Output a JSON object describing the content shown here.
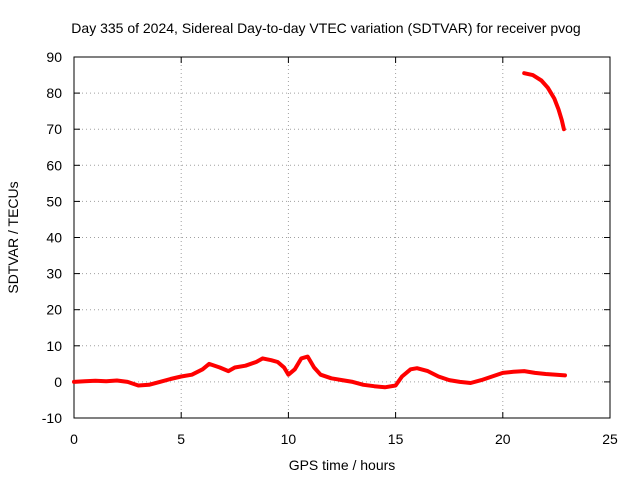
{
  "chart_data": {
    "type": "line",
    "title": "Day 335 of 2024, Sidereal Day-to-day VTEC variation (SDTVAR) for receiver pvog",
    "xlabel": "GPS time / hours",
    "ylabel": "SDTVAR / TECUs",
    "xlim": [
      0,
      25
    ],
    "ylim": [
      -10,
      90
    ],
    "xticks": [
      0,
      5,
      10,
      15,
      20,
      25
    ],
    "yticks": [
      -10,
      0,
      10,
      20,
      30,
      40,
      50,
      60,
      70,
      80,
      90
    ],
    "grid": true,
    "series": [
      {
        "name": "SDTVAR",
        "color": "#ff0000",
        "segments": [
          [
            [
              0.0,
              0.0
            ],
            [
              0.5,
              0.2
            ],
            [
              1.0,
              0.3
            ],
            [
              1.5,
              0.2
            ],
            [
              2.0,
              0.4
            ],
            [
              2.5,
              0.0
            ],
            [
              3.0,
              -1.0
            ],
            [
              3.5,
              -0.8
            ],
            [
              4.0,
              0.0
            ],
            [
              4.5,
              0.8
            ],
            [
              5.0,
              1.5
            ],
            [
              5.5,
              2.0
            ],
            [
              6.0,
              3.5
            ],
            [
              6.3,
              5.0
            ],
            [
              6.8,
              4.0
            ],
            [
              7.2,
              3.0
            ],
            [
              7.5,
              4.0
            ],
            [
              8.0,
              4.5
            ],
            [
              8.5,
              5.5
            ],
            [
              8.8,
              6.5
            ],
            [
              9.2,
              6.0
            ],
            [
              9.5,
              5.5
            ],
            [
              9.8,
              4.0
            ],
            [
              10.0,
              2.0
            ],
            [
              10.3,
              3.5
            ],
            [
              10.6,
              6.5
            ],
            [
              10.9,
              7.0
            ],
            [
              11.2,
              4.0
            ],
            [
              11.5,
              2.0
            ],
            [
              12.0,
              1.0
            ],
            [
              12.5,
              0.5
            ],
            [
              13.0,
              0.0
            ],
            [
              13.5,
              -0.8
            ],
            [
              14.0,
              -1.2
            ],
            [
              14.5,
              -1.5
            ],
            [
              15.0,
              -1.0
            ],
            [
              15.3,
              1.5
            ],
            [
              15.7,
              3.5
            ],
            [
              16.0,
              3.8
            ],
            [
              16.5,
              3.0
            ],
            [
              17.0,
              1.5
            ],
            [
              17.5,
              0.5
            ],
            [
              18.0,
              0.0
            ],
            [
              18.5,
              -0.3
            ],
            [
              19.0,
              0.5
            ],
            [
              19.5,
              1.5
            ],
            [
              20.0,
              2.5
            ],
            [
              20.5,
              2.8
            ],
            [
              21.0,
              3.0
            ],
            [
              21.5,
              2.5
            ],
            [
              22.0,
              2.2
            ],
            [
              22.5,
              2.0
            ],
            [
              22.9,
              1.8
            ]
          ],
          [
            [
              21.0,
              85.5
            ],
            [
              21.4,
              85.0
            ],
            [
              21.8,
              83.5
            ],
            [
              22.1,
              81.5
            ],
            [
              22.4,
              78.5
            ],
            [
              22.6,
              75.5
            ],
            [
              22.75,
              72.5
            ],
            [
              22.85,
              70.0
            ]
          ]
        ]
      }
    ]
  }
}
